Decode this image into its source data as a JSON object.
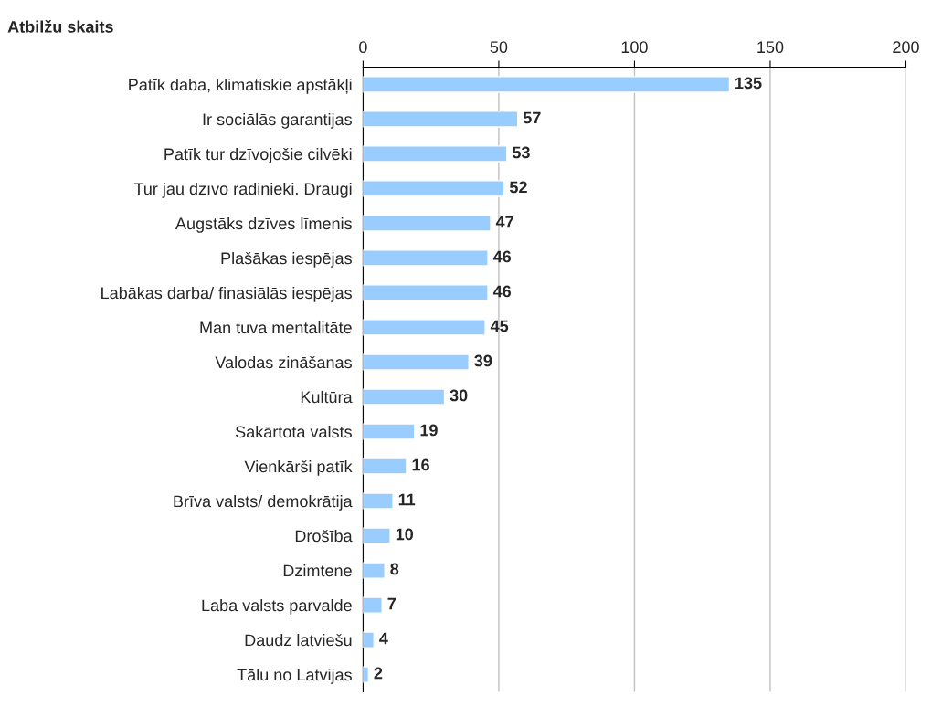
{
  "chart_data": {
    "type": "bar",
    "orientation": "horizontal",
    "title": "Atbilžu skaits",
    "categories": [
      "Patīk daba, klimatiskie apstākļi",
      "Ir sociālās garantijas",
      "Patīk tur dzīvojošie cilvēki",
      "Tur jau dzīvo radinieki. Draugi",
      "Augstāks dzīves līmenis",
      "Plašākas iespējas",
      "Labākas darba/ finasiālās iespējas",
      "Man tuva mentalitāte",
      "Valodas zināšanas",
      "Kultūra",
      "Sakārtota valsts",
      "Vienkārši patīk",
      "Brīva valsts/ demokrātija",
      "Drošība",
      "Dzimtene",
      "Laba valsts parvalde",
      "Daudz latviešu",
      "Tālu no Latvijas"
    ],
    "values": [
      135,
      57,
      53,
      52,
      47,
      46,
      46,
      45,
      39,
      30,
      19,
      16,
      11,
      10,
      8,
      7,
      4,
      2
    ],
    "color": "#99ccff",
    "xlim": [
      0,
      200
    ],
    "xticks": [
      0,
      50,
      100,
      150,
      200
    ],
    "grid": "x",
    "data_labels": true,
    "legend": false
  }
}
